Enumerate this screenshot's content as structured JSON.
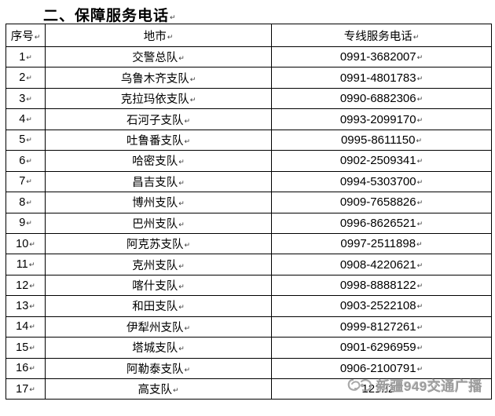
{
  "title": {
    "text": "二、保障服务电话",
    "mark": "↵"
  },
  "marks": {
    "cell_mark": "↵"
  },
  "table": {
    "headers": [
      "序号",
      "地市",
      "专线服务电话"
    ],
    "rows": [
      {
        "no": "1",
        "city": "交警总队",
        "phone": "0991-3682007"
      },
      {
        "no": "2",
        "city": "乌鲁木齐支队",
        "phone": "0991-4801783"
      },
      {
        "no": "3",
        "city": "克拉玛依支队",
        "phone": "0990-6882306"
      },
      {
        "no": "4",
        "city": "石河子支队",
        "phone": "0993-2099170"
      },
      {
        "no": "5",
        "city": "吐鲁番支队",
        "phone": "0995-8611150"
      },
      {
        "no": "6",
        "city": "哈密支队",
        "phone": "0902-2509341"
      },
      {
        "no": "7",
        "city": "昌吉支队",
        "phone": "0994-5303700"
      },
      {
        "no": "8",
        "city": "博州支队",
        "phone": "0909-7658826"
      },
      {
        "no": "9",
        "city": "巴州支队",
        "phone": "0996-8626521"
      },
      {
        "no": "10",
        "city": "阿克苏支队",
        "phone": "0997-2511898"
      },
      {
        "no": "11",
        "city": "克州支队",
        "phone": "0908-4220621"
      },
      {
        "no": "12",
        "city": "喀什支队",
        "phone": "0998-8888122"
      },
      {
        "no": "13",
        "city": "和田支队",
        "phone": "0903-2522108"
      },
      {
        "no": "14",
        "city": "伊犁州支队",
        "phone": "0999-8127261"
      },
      {
        "no": "15",
        "city": "塔城支队",
        "phone": "0901-6296959"
      },
      {
        "no": "16",
        "city": "阿勒泰支队",
        "phone": "0906-2100791"
      },
      {
        "no": "17",
        "city": "高支队",
        "phone": "12122"
      }
    ]
  },
  "watermark": {
    "text": "新疆949交通广播",
    "logo": "station-logo"
  },
  "colors": {
    "background": "#ffffff",
    "border": "#000000",
    "text": "#000000",
    "watermark": "#9b9b9b"
  }
}
